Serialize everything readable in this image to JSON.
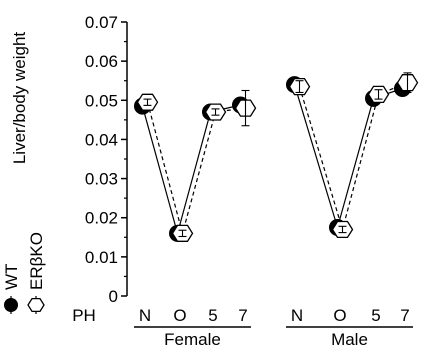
{
  "chart_data": {
    "type": "line",
    "ylabel": "Liver/body weight",
    "ylim": [
      0,
      0.07
    ],
    "yticks": [
      "0",
      "0.01",
      "0.02",
      "0.03",
      "0.04",
      "0.05",
      "0.06",
      "0.07"
    ],
    "x_prefix": "PH",
    "groups": [
      {
        "name": "Female",
        "categories": [
          "N",
          "O",
          "5",
          "7"
        ]
      },
      {
        "name": "Male",
        "categories": [
          "N",
          "O",
          "5",
          "7"
        ]
      }
    ],
    "series": [
      {
        "name": "WT",
        "marker": "circle",
        "line_style": "solid",
        "values": [
          0.0485,
          0.016,
          0.047,
          0.0488,
          0.054,
          0.0175,
          0.0505,
          0.053
        ],
        "errors": [
          0.001,
          0.0008,
          0.0008,
          0.0015,
          0.0012,
          0.0008,
          0.001,
          0.0012
        ]
      },
      {
        "name": "ERβKO",
        "marker": "hexagon",
        "line_style": "dashed",
        "values": [
          0.0495,
          0.016,
          0.047,
          0.048,
          0.0535,
          0.017,
          0.0515,
          0.0545
        ],
        "errors": [
          0.0008,
          0.0008,
          0.0008,
          0.0045,
          0.0015,
          0.0008,
          0.0012,
          0.0025
        ]
      }
    ],
    "legend_position": "left-bottom, rotated",
    "grid": false,
    "colors": {
      "wt_fill": "#000000",
      "ko_fill": "#ffffff",
      "stroke": "#000000"
    }
  }
}
